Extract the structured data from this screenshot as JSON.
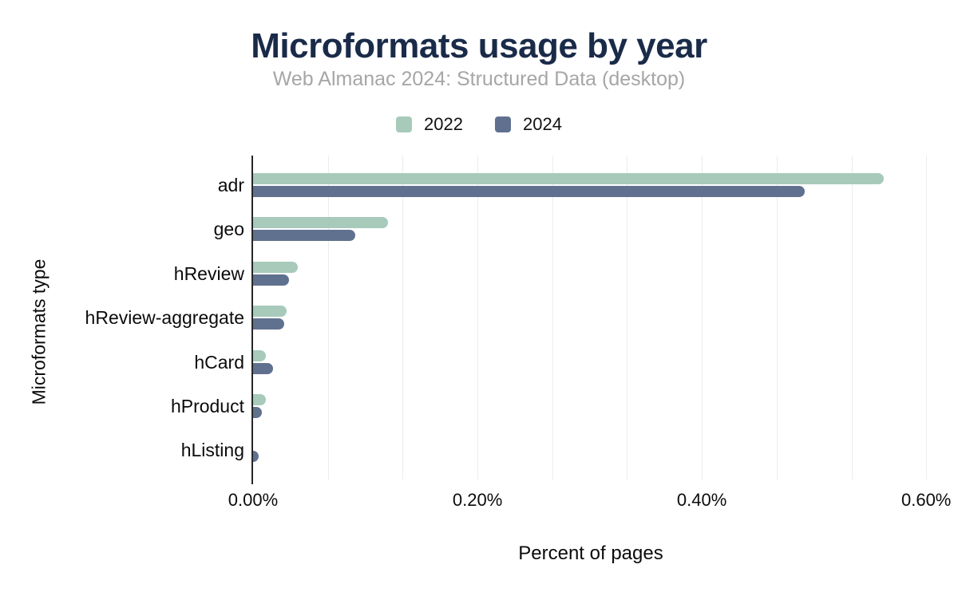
{
  "title": "Microformats usage by year",
  "subtitle": "Web Almanac 2024: Structured Data (desktop)",
  "legend": [
    {
      "label": "2022",
      "color": "#a7cabb"
    },
    {
      "label": "2024",
      "color": "#60718f"
    }
  ],
  "colors": {
    "title": "#1a2b49",
    "subtitle": "#a6a6a6",
    "series_2022": "#a7cabb",
    "series_2024": "#60718f",
    "gridline": "#ebecec",
    "axis_line": "#262626",
    "background": "#ffffff"
  },
  "chart_data": {
    "type": "bar",
    "orientation": "horizontal",
    "title": "Microformats usage by year",
    "subtitle": "Web Almanac 2024: Structured Data (desktop)",
    "xlabel": "Percent of pages",
    "ylabel": "Microformats type",
    "categories": [
      "adr",
      "geo",
      "hReview",
      "hReview-aggregate",
      "hCard",
      "hProduct",
      "hListing"
    ],
    "series": [
      {
        "name": "2022",
        "color": "#a7cabb",
        "values": [
          0.562,
          0.12,
          0.04,
          0.03,
          0.011,
          0.011,
          0
        ]
      },
      {
        "name": "2024",
        "color": "#60718f",
        "values": [
          0.492,
          0.091,
          0.032,
          0.028,
          0.018,
          0.008,
          0.005
        ]
      }
    ],
    "value_unit": "percent_of_pages",
    "xlim": [
      0,
      0.602
    ],
    "xticks": [
      {
        "value": 0.0,
        "label": "0.00%"
      },
      {
        "value": 0.2,
        "label": "0.20%"
      },
      {
        "value": 0.4,
        "label": "0.40%"
      },
      {
        "value": 0.6,
        "label": "0.60%"
      }
    ],
    "gridlines": [
      0.0667,
      0.1333,
      0.2,
      0.2667,
      0.3333,
      0.4,
      0.4667,
      0.5333,
      0.6
    ],
    "grid": true,
    "legend_position": "top"
  }
}
